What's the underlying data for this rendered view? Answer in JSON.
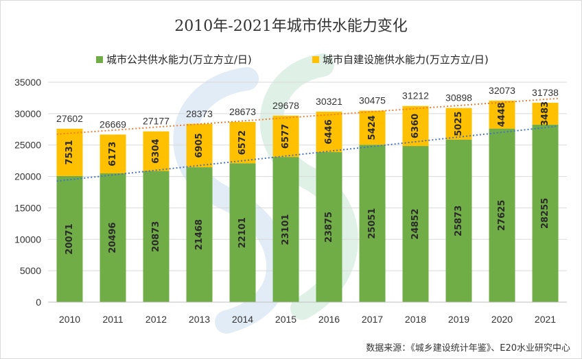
{
  "chart_data": {
    "type": "bar",
    "stacked": true,
    "title": "2010年-2021年城市供水能力变化",
    "categories": [
      "2010",
      "2011",
      "2012",
      "2013",
      "2014",
      "2015",
      "2016",
      "2017",
      "2018",
      "2019",
      "2020",
      "2021"
    ],
    "series": [
      {
        "name": "城市公共供水能力(万立方立/日)",
        "color": "#70ad47",
        "values": [
          20071,
          20496,
          20873,
          21468,
          22101,
          23101,
          23875,
          25051,
          24852,
          25873,
          27625,
          28255
        ]
      },
      {
        "name": "城市自建设施供水能力(万立方立/日)",
        "color": "#ffc000",
        "values": [
          7531,
          6173,
          6304,
          6905,
          6572,
          6577,
          6446,
          5424,
          6360,
          5025,
          4448,
          3483
        ]
      }
    ],
    "totals": [
      27602,
      26669,
      27177,
      28373,
      28673,
      29678,
      30321,
      30475,
      31212,
      30898,
      32073,
      31738
    ],
    "ylim": [
      0,
      35000
    ],
    "yticks": [
      0,
      5000,
      10000,
      15000,
      20000,
      25000,
      30000,
      35000
    ],
    "grid": true,
    "legend_position": "top",
    "trendlines": [
      {
        "of": "城市公共供水能力(万立方立/日)",
        "style": "dotted",
        "color": "#4472c4"
      },
      {
        "of": "total",
        "style": "dotted",
        "color": "#ed7d31"
      }
    ],
    "source_note": "数据来源：《城乡建设统计年鉴》、E20水业研究中心"
  }
}
